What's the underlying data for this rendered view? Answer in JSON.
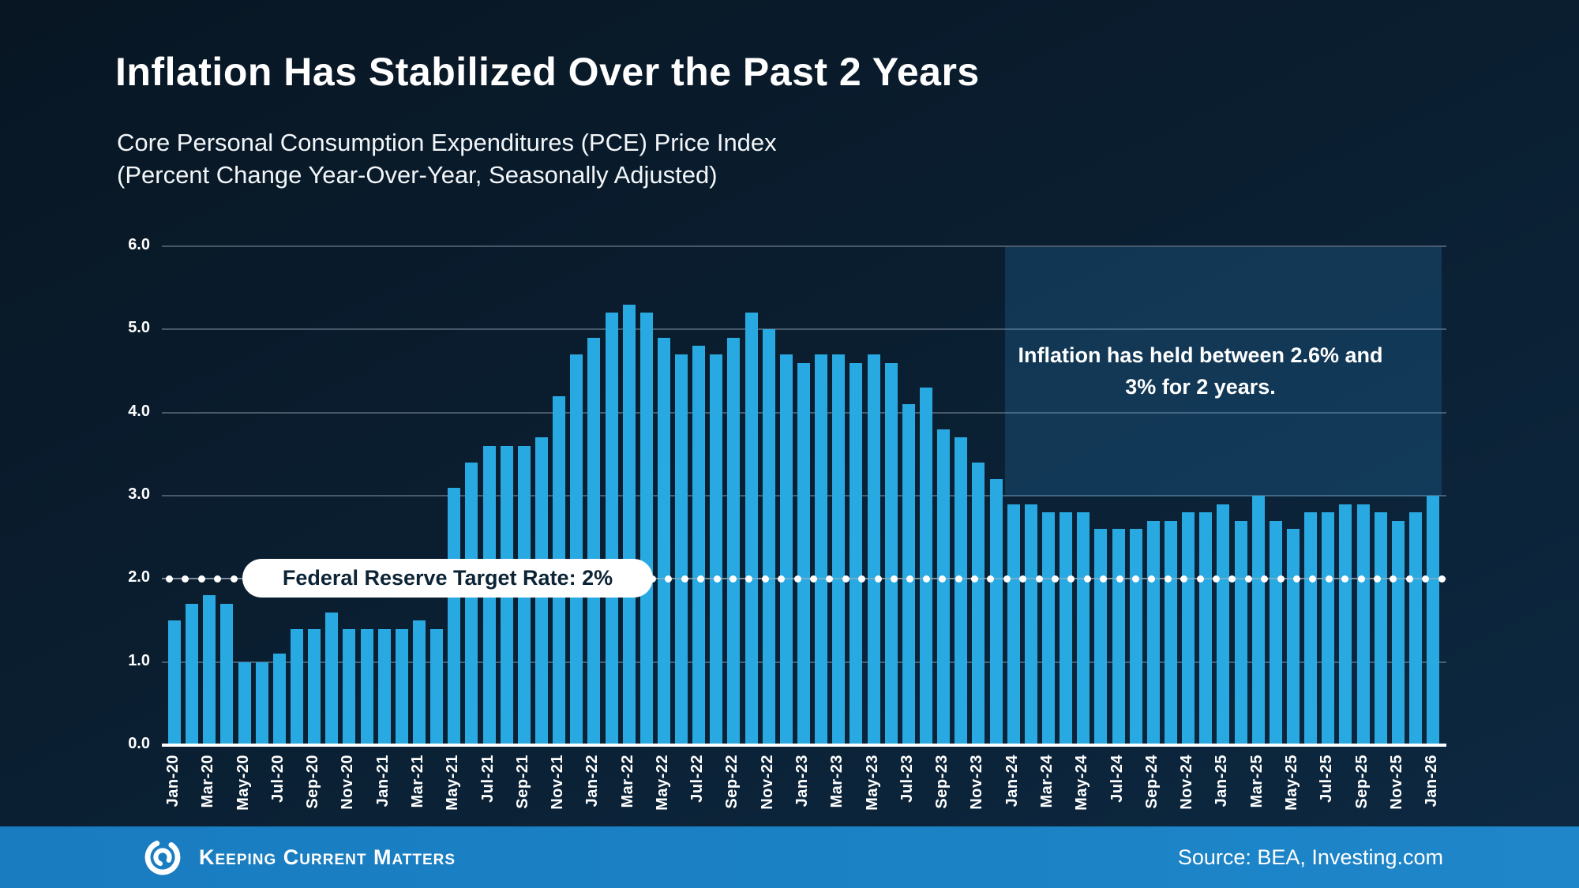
{
  "header": {
    "title": "Inflation Has Stabilized Over the Past 2 Years",
    "subtitle_line1": "Core Personal Consumption Expenditures (PCE) Price Index",
    "subtitle_line2": "(Percent Change Year-Over-Year, Seasonally Adjusted)"
  },
  "chart_data": {
    "type": "bar",
    "title": "Core Personal Consumption Expenditures (PCE) Price Index (Percent Change Year-Over-Year, Seasonally Adjusted)",
    "categories": [
      "Jan-20",
      "Feb-20",
      "Mar-20",
      "Apr-20",
      "May-20",
      "Jun-20",
      "Jul-20",
      "Aug-20",
      "Sep-20",
      "Oct-20",
      "Nov-20",
      "Dec-20",
      "Jan-21",
      "Feb-21",
      "Mar-21",
      "Apr-21",
      "May-21",
      "Jun-21",
      "Jul-21",
      "Aug-21",
      "Sep-21",
      "Oct-21",
      "Nov-21",
      "Dec-21",
      "Jan-22",
      "Feb-22",
      "Mar-22",
      "Apr-22",
      "May-22",
      "Jun-22",
      "Jul-22",
      "Aug-22",
      "Sep-22",
      "Oct-22",
      "Nov-22",
      "Dec-22",
      "Jan-23",
      "Feb-23",
      "Mar-23",
      "Apr-23",
      "May-23",
      "Jun-23",
      "Jul-23",
      "Aug-23",
      "Sep-23",
      "Oct-23",
      "Nov-23",
      "Dec-23",
      "Jan-24",
      "Feb-24",
      "Mar-24",
      "Apr-24",
      "May-24",
      "Jun-24",
      "Jul-24",
      "Aug-24",
      "Sep-24",
      "Oct-24",
      "Nov-24",
      "Dec-24",
      "Jan-25",
      "Feb-25",
      "Mar-25",
      "Apr-25",
      "May-25",
      "Jun-25",
      "Jul-25",
      "Aug-25",
      "Sep-25",
      "Oct-25",
      "Nov-25",
      "Dec-25",
      "Jan-26"
    ],
    "values": [
      1.5,
      1.7,
      1.8,
      1.7,
      1.0,
      1.0,
      1.1,
      1.4,
      1.4,
      1.6,
      1.4,
      1.4,
      1.4,
      1.4,
      1.5,
      1.4,
      3.1,
      3.4,
      3.6,
      3.6,
      3.6,
      3.7,
      4.2,
      4.7,
      4.9,
      5.2,
      5.3,
      5.2,
      4.9,
      4.7,
      4.8,
      4.7,
      4.9,
      5.2,
      5.0,
      4.7,
      4.6,
      4.7,
      4.7,
      4.6,
      4.7,
      4.6,
      4.1,
      4.3,
      3.8,
      3.7,
      3.4,
      3.2,
      2.9,
      2.9,
      2.8,
      2.8,
      2.8,
      2.6,
      2.6,
      2.6,
      2.7,
      2.7,
      2.8,
      2.8,
      2.9,
      2.7,
      3.0,
      2.7,
      2.6,
      2.8,
      2.8,
      2.9,
      2.9,
      2.8,
      2.7,
      2.8,
      3.0
    ],
    "ylim": [
      0,
      6
    ],
    "yticks": [
      "0.0",
      "1.0",
      "2.0",
      "3.0",
      "4.0",
      "5.0",
      "6.0"
    ],
    "x_tick_visible_every": 2,
    "grid": "horizontal",
    "bar_color": "#29a9e1",
    "target_line": {
      "value": 2.0,
      "label": "Federal Reserve Target Rate: 2%",
      "style": "dotted",
      "color": "#ffffff"
    },
    "annotation": {
      "text_line1": "Inflation has held between 2.6% and",
      "text_line2": "3% for 2 years.",
      "x_start": "Jan-24",
      "x_end": "Jan-26",
      "y_top": 6.0,
      "y_bottom": 3.0,
      "fill": "#10395a"
    }
  },
  "footer": {
    "brand": "Keeping Current Matters",
    "source": "Source: BEA, Investing.com",
    "bar_color": "#1b82c6",
    "accent_blue": "#29a9e1"
  }
}
